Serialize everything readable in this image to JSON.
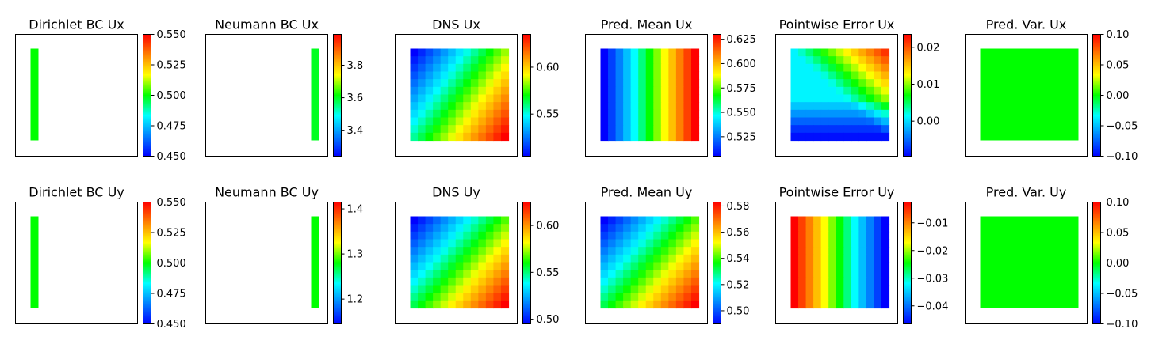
{
  "colors": {
    "colormap": [
      "#0000ff",
      "#0080ff",
      "#00ffff",
      "#00ff00",
      "#ffff00",
      "#ff8000",
      "#ff0000"
    ],
    "bc_stripe": "#00ff00",
    "axes_edge": "#000000"
  },
  "chart_data": [
    {
      "type": "heatmap",
      "title": "Dirichlet BC Ux",
      "colorbar_range": [
        0.45,
        0.55
      ],
      "colorbar_ticks": [
        "0.450",
        "0.475",
        "0.500",
        "0.525",
        "0.550"
      ],
      "colorbar_tick_values": [
        0.45,
        0.475,
        0.5,
        0.525,
        0.55
      ],
      "field": {
        "kind": "stripe",
        "side": "left",
        "value": 0.5
      }
    },
    {
      "type": "heatmap",
      "title": "Neumann BC Ux",
      "colorbar_range": [
        3.24,
        3.99
      ],
      "colorbar_ticks": [
        "3.4",
        "3.6",
        "3.8"
      ],
      "colorbar_tick_values": [
        3.4,
        3.6,
        3.8
      ],
      "field": {
        "kind": "stripe",
        "side": "right",
        "value": 3.6
      }
    },
    {
      "type": "heatmap",
      "title": "DNS Ux",
      "colorbar_range": [
        0.505,
        0.635
      ],
      "colorbar_ticks": [
        "0.55",
        "0.60"
      ],
      "colorbar_tick_values": [
        0.55,
        0.6
      ],
      "field": {
        "kind": "grid",
        "rows": 12,
        "cols": 13,
        "pattern": "diagonal_x",
        "range": [
          0.505,
          0.635
        ]
      }
    },
    {
      "type": "heatmap",
      "title": "Pred. Mean Ux",
      "colorbar_range": [
        0.505,
        0.63
      ],
      "colorbar_ticks": [
        "0.525",
        "0.550",
        "0.575",
        "0.600",
        "0.625"
      ],
      "colorbar_tick_values": [
        0.525,
        0.55,
        0.575,
        0.6,
        0.625
      ],
      "field": {
        "kind": "grid",
        "rows": 12,
        "cols": 13,
        "pattern": "columns",
        "range": [
          0.505,
          0.63
        ]
      }
    },
    {
      "type": "heatmap",
      "title": "Pointwise Error Ux",
      "colorbar_range": [
        -0.0095,
        0.0235
      ],
      "colorbar_ticks": [
        "0.00",
        "0.01",
        "0.02"
      ],
      "colorbar_tick_values": [
        0.0,
        0.01,
        0.02
      ],
      "field": {
        "kind": "grid",
        "rows": 12,
        "cols": 13,
        "pattern": "error_x",
        "range": [
          -0.0095,
          0.0235
        ]
      }
    },
    {
      "type": "heatmap",
      "title": "Pred. Var. Ux",
      "colorbar_range": [
        -0.1,
        0.1
      ],
      "colorbar_ticks": [
        "−0.10",
        "−0.05",
        "0.00",
        "0.05",
        "0.10"
      ],
      "colorbar_tick_values": [
        -0.1,
        -0.05,
        0.0,
        0.05,
        0.1
      ],
      "field": {
        "kind": "constant",
        "value": 0.0
      }
    },
    {
      "type": "heatmap",
      "title": "Dirichlet BC Uy",
      "colorbar_range": [
        0.45,
        0.55
      ],
      "colorbar_ticks": [
        "0.450",
        "0.475",
        "0.500",
        "0.525",
        "0.550"
      ],
      "colorbar_tick_values": [
        0.45,
        0.475,
        0.5,
        0.525,
        0.55
      ],
      "field": {
        "kind": "stripe",
        "side": "left",
        "value": 0.5
      }
    },
    {
      "type": "heatmap",
      "title": "Neumann BC Uy",
      "colorbar_range": [
        1.145,
        1.415
      ],
      "colorbar_ticks": [
        "1.2",
        "1.3",
        "1.4"
      ],
      "colorbar_tick_values": [
        1.2,
        1.3,
        1.4
      ],
      "field": {
        "kind": "stripe",
        "side": "right",
        "value": 1.28
      }
    },
    {
      "type": "heatmap",
      "title": "DNS Uy",
      "colorbar_range": [
        0.495,
        0.625
      ],
      "colorbar_ticks": [
        "0.50",
        "0.55",
        "0.60"
      ],
      "colorbar_tick_values": [
        0.5,
        0.55,
        0.6
      ],
      "field": {
        "kind": "grid",
        "rows": 12,
        "cols": 13,
        "pattern": "diagonal_y",
        "range": [
          0.495,
          0.625
        ]
      }
    },
    {
      "type": "heatmap",
      "title": "Pred. Mean Uy",
      "colorbar_range": [
        0.49,
        0.583
      ],
      "colorbar_ticks": [
        "0.50",
        "0.52",
        "0.54",
        "0.56",
        "0.58"
      ],
      "colorbar_tick_values": [
        0.5,
        0.52,
        0.54,
        0.56,
        0.58
      ],
      "field": {
        "kind": "grid",
        "rows": 12,
        "cols": 13,
        "pattern": "diagonal_y",
        "range": [
          0.49,
          0.583
        ]
      }
    },
    {
      "type": "heatmap",
      "title": "Pointwise Error Uy",
      "colorbar_range": [
        -0.0465,
        -0.0025
      ],
      "colorbar_ticks": [
        "−0.04",
        "−0.03",
        "−0.02",
        "−0.01"
      ],
      "colorbar_tick_values": [
        -0.04,
        -0.03,
        -0.02,
        -0.01
      ],
      "field": {
        "kind": "grid",
        "rows": 12,
        "cols": 13,
        "pattern": "columns_rev",
        "range": [
          -0.0465,
          -0.0025
        ]
      }
    },
    {
      "type": "heatmap",
      "title": "Pred. Var. Uy",
      "colorbar_range": [
        -0.1,
        0.1
      ],
      "colorbar_ticks": [
        "−0.10",
        "−0.05",
        "0.00",
        "0.05",
        "0.10"
      ],
      "colorbar_tick_values": [
        -0.1,
        -0.05,
        0.0,
        0.05,
        0.1
      ],
      "field": {
        "kind": "constant",
        "value": 0.0
      }
    }
  ]
}
